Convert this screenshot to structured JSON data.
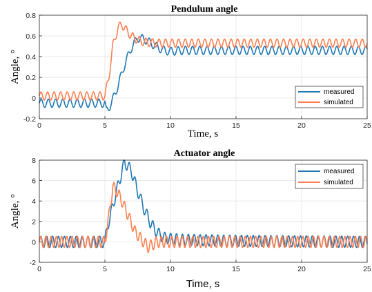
{
  "chart_data": [
    {
      "type": "line",
      "title": "Pendulum angle",
      "xlabel": "Time, s",
      "ylabel": "Angle, °",
      "xlim": [
        0,
        25
      ],
      "ylim": [
        -0.2,
        0.8
      ],
      "xticks": [
        "0",
        "5",
        "10",
        "15",
        "20",
        "25"
      ],
      "yticks": [
        "-0.2",
        "0",
        "0.2",
        "0.4",
        "0.6",
        "0.8"
      ],
      "grid": true,
      "legend": "bottom-right",
      "series": [
        {
          "name": "measured",
          "color": "#1f77b4",
          "oscillation_amplitude": 0.04,
          "oscillation_period_s": 0.55,
          "x": [
            0,
            5.0,
            5.1,
            5.5,
            6.0,
            6.5,
            7.0,
            7.5,
            8.0,
            8.5,
            9.0,
            9.5,
            10.0,
            11.0,
            12.0,
            15.0,
            20.0,
            25.0
          ],
          "y": [
            -0.05,
            -0.05,
            -0.13,
            -0.05,
            0.12,
            0.32,
            0.48,
            0.58,
            0.57,
            0.53,
            0.49,
            0.46,
            0.45,
            0.46,
            0.46,
            0.46,
            0.46,
            0.46
          ]
        },
        {
          "name": "simulated",
          "color": "#ff7f50",
          "oscillation_amplitude": 0.04,
          "oscillation_period_s": 0.5,
          "x": [
            0,
            5.0,
            5.3,
            5.6,
            6.0,
            6.3,
            6.6,
            7.0,
            7.5,
            8.0,
            9.0,
            10.0,
            15.0,
            20.0,
            25.0
          ],
          "y": [
            0.02,
            0.02,
            0.2,
            0.5,
            0.68,
            0.71,
            0.66,
            0.6,
            0.56,
            0.54,
            0.53,
            0.53,
            0.53,
            0.53,
            0.53
          ]
        }
      ]
    },
    {
      "type": "line",
      "title": "Actuator angle",
      "xlabel": "Time, s",
      "ylabel": "Angle, °",
      "xlim": [
        0,
        25
      ],
      "ylim": [
        -2,
        8
      ],
      "xticks": [
        "0",
        "5",
        "10",
        "15",
        "20",
        "25"
      ],
      "yticks": [
        "-2",
        "0",
        "2",
        "4",
        "6",
        "8"
      ],
      "grid": true,
      "legend": "top-right",
      "series": [
        {
          "name": "measured",
          "color": "#1f77b4",
          "oscillation_amplitude": 0.55,
          "oscillation_period_s": 0.45,
          "x": [
            0,
            5.0,
            5.2,
            5.5,
            6.0,
            6.5,
            7.0,
            7.5,
            8.0,
            8.5,
            9.0,
            9.5,
            10.0,
            11.0,
            15.0,
            25.0
          ],
          "y": [
            0.0,
            0.0,
            1.5,
            3.0,
            5.5,
            7.8,
            7.0,
            5.0,
            3.2,
            1.8,
            0.9,
            0.4,
            0.3,
            0.2,
            0.1,
            0.0
          ]
        },
        {
          "name": "simulated",
          "color": "#ff7f50",
          "oscillation_amplitude": 0.55,
          "oscillation_period_s": 0.4,
          "x": [
            0,
            5.0,
            5.3,
            5.6,
            5.9,
            6.3,
            6.8,
            7.3,
            7.8,
            8.3,
            9.0,
            25.0
          ],
          "y": [
            0.0,
            0.0,
            2.5,
            5.4,
            5.0,
            4.0,
            2.5,
            1.0,
            0.2,
            -0.5,
            0.0,
            0.0
          ]
        }
      ]
    }
  ]
}
